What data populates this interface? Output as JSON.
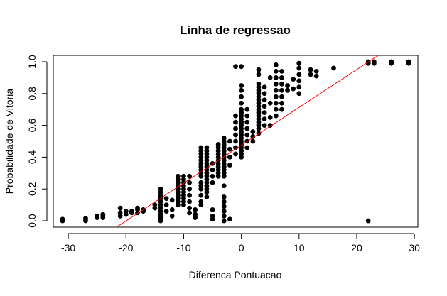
{
  "chart_data": {
    "type": "scatter",
    "title": "Linha de regressao",
    "xlabel": "Diferenca Pontuacao",
    "ylabel": "Probabilidade de Vitoria",
    "xlim": [
      -32.6,
      30.6
    ],
    "ylim": [
      -0.04,
      1.04
    ],
    "x_ticks": [
      -30,
      -20,
      -10,
      0,
      10,
      20,
      30
    ],
    "x_tick_labels": [
      "-30",
      "-20",
      "-10",
      "0",
      "10",
      "20",
      "30"
    ],
    "y_ticks": [
      0.0,
      0.2,
      0.4,
      0.6,
      0.8,
      1.0
    ],
    "y_tick_labels": [
      "0.0",
      "0.2",
      "0.4",
      "0.6",
      "0.8",
      "1.0"
    ],
    "grid": false,
    "legend": "none",
    "point_color": "#000000",
    "regression_line": {
      "color": "#ff0000",
      "intercept": 0.475,
      "slope": 0.0238
    },
    "points": [
      {
        "x": -31,
        "y": 0.0
      },
      {
        "x": -31,
        "y": 0.01
      },
      {
        "x": -27,
        "y": 0.0
      },
      {
        "x": -27,
        "y": 0.01
      },
      {
        "x": -27,
        "y": 0.015
      },
      {
        "x": -25,
        "y": 0.02
      },
      {
        "x": -25,
        "y": 0.03
      },
      {
        "x": -24,
        "y": 0.02
      },
      {
        "x": -24,
        "y": 0.03
      },
      {
        "x": -24,
        "y": 0.04
      },
      {
        "x": -21,
        "y": 0.03
      },
      {
        "x": -21,
        "y": 0.05
      },
      {
        "x": -21,
        "y": 0.08
      },
      {
        "x": -20,
        "y": 0.04
      },
      {
        "x": -20,
        "y": 0.06
      },
      {
        "x": -19,
        "y": 0.05
      },
      {
        "x": -19,
        "y": 0.06
      },
      {
        "x": -18,
        "y": 0.05
      },
      {
        "x": -18,
        "y": 0.07
      },
      {
        "x": -18,
        "y": 0.08
      },
      {
        "x": -17,
        "y": 0.06
      },
      {
        "x": -17,
        "y": 0.07
      },
      {
        "x": -15,
        "y": 0.08
      },
      {
        "x": -15,
        "y": 0.1
      },
      {
        "x": -14,
        "y": 0.0
      },
      {
        "x": -14,
        "y": 0.02
      },
      {
        "x": -14,
        "y": 0.04
      },
      {
        "x": -14,
        "y": 0.06
      },
      {
        "x": -14,
        "y": 0.08
      },
      {
        "x": -14,
        "y": 0.1
      },
      {
        "x": -14,
        "y": 0.12
      },
      {
        "x": -14,
        "y": 0.14
      },
      {
        "x": -14,
        "y": 0.16
      },
      {
        "x": -14,
        "y": 0.18
      },
      {
        "x": -14,
        "y": 0.2
      },
      {
        "x": -13,
        "y": 0.06
      },
      {
        "x": -13,
        "y": 0.1
      },
      {
        "x": -13,
        "y": 0.14
      },
      {
        "x": -12,
        "y": 0.03
      },
      {
        "x": -12,
        "y": 0.07
      },
      {
        "x": -12,
        "y": 0.13
      },
      {
        "x": -11,
        "y": 0.1
      },
      {
        "x": -11,
        "y": 0.12
      },
      {
        "x": -11,
        "y": 0.14
      },
      {
        "x": -11,
        "y": 0.16
      },
      {
        "x": -11,
        "y": 0.18
      },
      {
        "x": -11,
        "y": 0.2
      },
      {
        "x": -11,
        "y": 0.22
      },
      {
        "x": -11,
        "y": 0.24
      },
      {
        "x": -11,
        "y": 0.26
      },
      {
        "x": -11,
        "y": 0.28
      },
      {
        "x": -10,
        "y": 0.1
      },
      {
        "x": -10,
        "y": 0.12
      },
      {
        "x": -10,
        "y": 0.14
      },
      {
        "x": -10,
        "y": 0.16
      },
      {
        "x": -10,
        "y": 0.18
      },
      {
        "x": -10,
        "y": 0.2
      },
      {
        "x": -10,
        "y": 0.22
      },
      {
        "x": -10,
        "y": 0.24
      },
      {
        "x": -10,
        "y": 0.26
      },
      {
        "x": -10,
        "y": 0.28
      },
      {
        "x": -9,
        "y": 0.05
      },
      {
        "x": -9,
        "y": 0.08
      },
      {
        "x": -9,
        "y": 0.12
      },
      {
        "x": -9,
        "y": 0.16
      },
      {
        "x": -9,
        "y": 0.2
      },
      {
        "x": -9,
        "y": 0.24
      },
      {
        "x": -9,
        "y": 0.28
      },
      {
        "x": -8,
        "y": 0.02
      },
      {
        "x": -8,
        "y": 0.04
      },
      {
        "x": -8,
        "y": 0.07
      },
      {
        "x": -7,
        "y": 0.1
      },
      {
        "x": -7,
        "y": 0.12
      },
      {
        "x": -7,
        "y": 0.16
      },
      {
        "x": -7,
        "y": 0.2
      },
      {
        "x": -7,
        "y": 0.22
      },
      {
        "x": -7,
        "y": 0.24
      },
      {
        "x": -7,
        "y": 0.28
      },
      {
        "x": -7,
        "y": 0.3
      },
      {
        "x": -7,
        "y": 0.32
      },
      {
        "x": -7,
        "y": 0.34
      },
      {
        "x": -7,
        "y": 0.36
      },
      {
        "x": -7,
        "y": 0.38
      },
      {
        "x": -7,
        "y": 0.4
      },
      {
        "x": -7,
        "y": 0.42
      },
      {
        "x": -7,
        "y": 0.44
      },
      {
        "x": -7,
        "y": 0.46
      },
      {
        "x": -6,
        "y": 0.15
      },
      {
        "x": -6,
        "y": 0.18
      },
      {
        "x": -6,
        "y": 0.2
      },
      {
        "x": -6,
        "y": 0.22
      },
      {
        "x": -6,
        "y": 0.24
      },
      {
        "x": -6,
        "y": 0.26
      },
      {
        "x": -6,
        "y": 0.28
      },
      {
        "x": -6,
        "y": 0.3
      },
      {
        "x": -6,
        "y": 0.32
      },
      {
        "x": -6,
        "y": 0.34
      },
      {
        "x": -6,
        "y": 0.36
      },
      {
        "x": -6,
        "y": 0.38
      },
      {
        "x": -6,
        "y": 0.4
      },
      {
        "x": -6,
        "y": 0.42
      },
      {
        "x": -6,
        "y": 0.44
      },
      {
        "x": -6,
        "y": 0.46
      },
      {
        "x": -5,
        "y": 0.01
      },
      {
        "x": -5,
        "y": 0.03
      },
      {
        "x": -5,
        "y": 0.07
      },
      {
        "x": -5,
        "y": 0.24
      },
      {
        "x": -5,
        "y": 0.28
      },
      {
        "x": -5,
        "y": 0.32
      },
      {
        "x": -5,
        "y": 0.36
      },
      {
        "x": -4,
        "y": 0.28
      },
      {
        "x": -4,
        "y": 0.3
      },
      {
        "x": -4,
        "y": 0.32
      },
      {
        "x": -4,
        "y": 0.34
      },
      {
        "x": -4,
        "y": 0.36
      },
      {
        "x": -4,
        "y": 0.38
      },
      {
        "x": -4,
        "y": 0.4
      },
      {
        "x": -4,
        "y": 0.42
      },
      {
        "x": -4,
        "y": 0.44
      },
      {
        "x": -4,
        "y": 0.46
      },
      {
        "x": -4,
        "y": 0.48
      },
      {
        "x": -3,
        "y": 0.0
      },
      {
        "x": -3,
        "y": 0.03
      },
      {
        "x": -3,
        "y": 0.06
      },
      {
        "x": -3,
        "y": 0.09
      },
      {
        "x": -3,
        "y": 0.12
      },
      {
        "x": -3,
        "y": 0.15
      },
      {
        "x": -3,
        "y": 0.22
      },
      {
        "x": -3,
        "y": 0.28
      },
      {
        "x": -3,
        "y": 0.3
      },
      {
        "x": -3,
        "y": 0.32
      },
      {
        "x": -3,
        "y": 0.34
      },
      {
        "x": -3,
        "y": 0.36
      },
      {
        "x": -3,
        "y": 0.38
      },
      {
        "x": -3,
        "y": 0.4
      },
      {
        "x": -3,
        "y": 0.42
      },
      {
        "x": -3,
        "y": 0.44
      },
      {
        "x": -3,
        "y": 0.46
      },
      {
        "x": -3,
        "y": 0.48
      },
      {
        "x": -3,
        "y": 0.5
      },
      {
        "x": -3,
        "y": 0.52
      },
      {
        "x": -2,
        "y": 0.01
      },
      {
        "x": -2,
        "y": 0.35
      },
      {
        "x": -2,
        "y": 0.4
      },
      {
        "x": -2,
        "y": 0.45
      },
      {
        "x": -2,
        "y": 0.5
      },
      {
        "x": -1,
        "y": 0.42
      },
      {
        "x": -1,
        "y": 0.46
      },
      {
        "x": -1,
        "y": 0.5
      },
      {
        "x": -1,
        "y": 0.54
      },
      {
        "x": -1,
        "y": 0.58
      },
      {
        "x": -1,
        "y": 0.62
      },
      {
        "x": -1,
        "y": 0.66
      },
      {
        "x": -1,
        "y": 0.97
      },
      {
        "x": 0,
        "y": 0.97
      },
      {
        "x": 0,
        "y": 0.4
      },
      {
        "x": 0,
        "y": 0.42
      },
      {
        "x": 0,
        "y": 0.44
      },
      {
        "x": 0,
        "y": 0.46
      },
      {
        "x": 0,
        "y": 0.48
      },
      {
        "x": 0,
        "y": 0.5
      },
      {
        "x": 0,
        "y": 0.52
      },
      {
        "x": 0,
        "y": 0.54
      },
      {
        "x": 0,
        "y": 0.56
      },
      {
        "x": 0,
        "y": 0.58
      },
      {
        "x": 0,
        "y": 0.6
      },
      {
        "x": 0,
        "y": 0.62
      },
      {
        "x": 0,
        "y": 0.64
      },
      {
        "x": 0,
        "y": 0.66
      },
      {
        "x": 0,
        "y": 0.68
      },
      {
        "x": 0,
        "y": 0.7
      },
      {
        "x": 0,
        "y": 0.74
      },
      {
        "x": 0,
        "y": 0.78
      },
      {
        "x": 0,
        "y": 0.82
      },
      {
        "x": 0,
        "y": 0.85
      },
      {
        "x": 1,
        "y": 0.46
      },
      {
        "x": 1,
        "y": 0.5
      },
      {
        "x": 1,
        "y": 0.54
      },
      {
        "x": 1,
        "y": 0.58
      },
      {
        "x": 1,
        "y": 0.62
      },
      {
        "x": 1,
        "y": 0.66
      },
      {
        "x": 1,
        "y": 0.7
      },
      {
        "x": 2,
        "y": 0.5
      },
      {
        "x": 2,
        "y": 0.53
      },
      {
        "x": 2,
        "y": 0.56
      },
      {
        "x": 3,
        "y": 0.55
      },
      {
        "x": 3,
        "y": 0.58
      },
      {
        "x": 3,
        "y": 0.6
      },
      {
        "x": 3,
        "y": 0.62
      },
      {
        "x": 3,
        "y": 0.64
      },
      {
        "x": 3,
        "y": 0.66
      },
      {
        "x": 3,
        "y": 0.68
      },
      {
        "x": 3,
        "y": 0.7
      },
      {
        "x": 3,
        "y": 0.72
      },
      {
        "x": 3,
        "y": 0.74
      },
      {
        "x": 3,
        "y": 0.76
      },
      {
        "x": 3,
        "y": 0.78
      },
      {
        "x": 3,
        "y": 0.8
      },
      {
        "x": 3,
        "y": 0.82
      },
      {
        "x": 3,
        "y": 0.84
      },
      {
        "x": 3,
        "y": 0.86
      },
      {
        "x": 3,
        "y": 0.92
      },
      {
        "x": 3,
        "y": 0.95
      },
      {
        "x": 4,
        "y": 0.6
      },
      {
        "x": 4,
        "y": 0.64
      },
      {
        "x": 4,
        "y": 0.68
      },
      {
        "x": 4,
        "y": 0.72
      },
      {
        "x": 4,
        "y": 0.76
      },
      {
        "x": 4,
        "y": 0.8
      },
      {
        "x": 4,
        "y": 0.84
      },
      {
        "x": 5,
        "y": 0.6
      },
      {
        "x": 5,
        "y": 0.65
      },
      {
        "x": 5,
        "y": 0.74
      },
      {
        "x": 5,
        "y": 0.9
      },
      {
        "x": 6,
        "y": 0.66
      },
      {
        "x": 6,
        "y": 0.7
      },
      {
        "x": 6,
        "y": 0.74
      },
      {
        "x": 6,
        "y": 0.78
      },
      {
        "x": 6,
        "y": 0.82
      },
      {
        "x": 6,
        "y": 0.86
      },
      {
        "x": 6,
        "y": 0.9
      },
      {
        "x": 6,
        "y": 0.94
      },
      {
        "x": 6,
        "y": 0.98
      },
      {
        "x": 7,
        "y": 0.7
      },
      {
        "x": 7,
        "y": 0.74
      },
      {
        "x": 7,
        "y": 0.78
      },
      {
        "x": 7,
        "y": 0.82
      },
      {
        "x": 7,
        "y": 0.86
      },
      {
        "x": 7,
        "y": 0.9
      },
      {
        "x": 7,
        "y": 0.94
      },
      {
        "x": 8,
        "y": 0.82
      },
      {
        "x": 8,
        "y": 0.85
      },
      {
        "x": 9,
        "y": 0.83
      },
      {
        "x": 9,
        "y": 0.89
      },
      {
        "x": 10,
        "y": 0.8
      },
      {
        "x": 10,
        "y": 0.84
      },
      {
        "x": 10,
        "y": 0.88
      },
      {
        "x": 10,
        "y": 0.92
      },
      {
        "x": 10,
        "y": 0.96
      },
      {
        "x": 10,
        "y": 0.99
      },
      {
        "x": 12,
        "y": 0.92
      },
      {
        "x": 12,
        "y": 0.95
      },
      {
        "x": 13,
        "y": 0.91
      },
      {
        "x": 13,
        "y": 0.94
      },
      {
        "x": 16,
        "y": 0.96
      },
      {
        "x": 22,
        "y": 0.0
      },
      {
        "x": 22,
        "y": 0.99
      },
      {
        "x": 22,
        "y": 1.0
      },
      {
        "x": 23,
        "y": 0.99
      },
      {
        "x": 23,
        "y": 1.0
      },
      {
        "x": 26,
        "y": 0.99
      },
      {
        "x": 26,
        "y": 1.0
      },
      {
        "x": 29,
        "y": 0.99
      },
      {
        "x": 29,
        "y": 1.0
      }
    ]
  }
}
